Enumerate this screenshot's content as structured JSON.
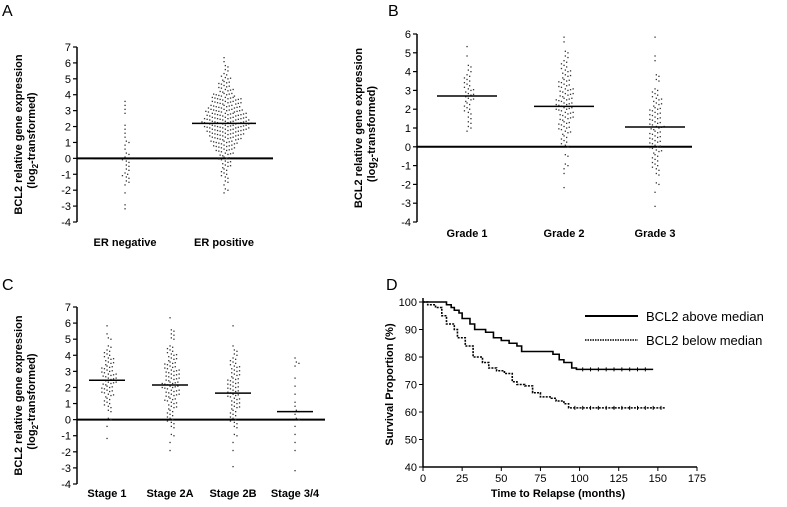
{
  "chart_data": [
    {
      "panel": "A",
      "type": "scatter",
      "ylabel": [
        "BCL2 relative gene expression",
        "(log",
        "2",
        "-transformed)"
      ],
      "ylim": [
        -4,
        7
      ],
      "yticks": [
        7,
        6,
        5,
        4,
        3,
        2,
        1,
        0,
        -1,
        -2,
        -3,
        -4
      ],
      "categories": [
        "ER negative",
        "ER positive"
      ],
      "medians": [
        0.0,
        2.2
      ],
      "bins": [
        [
          [
            3.5,
            1
          ],
          [
            3.25,
            1
          ],
          [
            3,
            1
          ],
          [
            2.75,
            1
          ],
          [
            2,
            1
          ],
          [
            1.75,
            1
          ],
          [
            1.5,
            1
          ],
          [
            1.25,
            1
          ],
          [
            1,
            2
          ],
          [
            0.75,
            1
          ],
          [
            0.5,
            1
          ],
          [
            0.25,
            2
          ],
          [
            0,
            3
          ],
          [
            -0.25,
            2
          ],
          [
            -0.5,
            2
          ],
          [
            -0.75,
            2
          ],
          [
            -1,
            3
          ],
          [
            -1.25,
            2
          ],
          [
            -1.5,
            2
          ],
          [
            -1.75,
            1
          ],
          [
            -2.25,
            1
          ],
          [
            -3,
            1
          ],
          [
            -3.25,
            1
          ]
        ],
        [
          [
            6.25,
            1
          ],
          [
            6,
            1
          ],
          [
            5.75,
            2
          ],
          [
            5.5,
            2
          ],
          [
            5.25,
            3
          ],
          [
            5,
            4
          ],
          [
            4.75,
            5
          ],
          [
            4.5,
            5
          ],
          [
            4.25,
            6
          ],
          [
            4,
            9
          ],
          [
            3.75,
            12
          ],
          [
            3.5,
            12
          ],
          [
            3.25,
            13
          ],
          [
            3,
            15
          ],
          [
            2.75,
            16
          ],
          [
            2.5,
            18
          ],
          [
            2.25,
            20
          ],
          [
            2,
            18
          ],
          [
            1.75,
            16
          ],
          [
            1.5,
            14
          ],
          [
            1.25,
            12
          ],
          [
            1,
            11
          ],
          [
            0.75,
            9
          ],
          [
            0.5,
            7
          ],
          [
            0.25,
            6
          ],
          [
            0,
            5
          ],
          [
            -0.25,
            4
          ],
          [
            -0.5,
            4
          ],
          [
            -0.75,
            3
          ],
          [
            -1,
            3
          ],
          [
            -1.25,
            2
          ],
          [
            -1.5,
            2
          ],
          [
            -1.75,
            1
          ],
          [
            -2,
            2
          ],
          [
            -2.25,
            1
          ]
        ]
      ]
    },
    {
      "panel": "B",
      "type": "scatter",
      "ylabel": [
        "BCL2 relative gene expression",
        "(log",
        "2",
        "-transformed)"
      ],
      "ylim": [
        -4,
        6
      ],
      "yticks": [
        6,
        5,
        4,
        3,
        2,
        1,
        0,
        -1,
        -2,
        -3,
        -4
      ],
      "categories": [
        "Grade 1",
        "Grade 2",
        "Grade 3"
      ],
      "medians": [
        2.7,
        2.15,
        1.05
      ],
      "bins": [
        [
          [
            5.25,
            1
          ],
          [
            4.75,
            1
          ],
          [
            4.25,
            2
          ],
          [
            4,
            2
          ],
          [
            3.75,
            3
          ],
          [
            3.5,
            3
          ],
          [
            3.25,
            3
          ],
          [
            3,
            4
          ],
          [
            2.75,
            4
          ],
          [
            2.5,
            4
          ],
          [
            2.25,
            3
          ],
          [
            2,
            3
          ],
          [
            1.75,
            2
          ],
          [
            1.5,
            2
          ],
          [
            1.25,
            2
          ],
          [
            1,
            2
          ],
          [
            0.75,
            1
          ]
        ],
        [
          [
            5.75,
            1
          ],
          [
            5.5,
            1
          ],
          [
            5,
            2
          ],
          [
            4.75,
            2
          ],
          [
            4.5,
            3
          ],
          [
            4.25,
            3
          ],
          [
            4,
            4
          ],
          [
            3.75,
            4
          ],
          [
            3.5,
            5
          ],
          [
            3.25,
            5
          ],
          [
            3,
            6
          ],
          [
            2.75,
            6
          ],
          [
            2.5,
            7
          ],
          [
            2.25,
            7
          ],
          [
            2,
            7
          ],
          [
            1.75,
            6
          ],
          [
            1.5,
            6
          ],
          [
            1.25,
            5
          ],
          [
            1,
            5
          ],
          [
            0.75,
            4
          ],
          [
            0.5,
            3
          ],
          [
            0.25,
            3
          ],
          [
            0,
            2
          ],
          [
            -0.5,
            2
          ],
          [
            -1,
            2
          ],
          [
            -1.25,
            1
          ],
          [
            -1.5,
            1
          ],
          [
            -2.25,
            1
          ]
        ],
        [
          [
            5.75,
            1
          ],
          [
            4.75,
            1
          ],
          [
            4.5,
            1
          ],
          [
            3.75,
            2
          ],
          [
            3.5,
            2
          ],
          [
            3,
            3
          ],
          [
            2.75,
            3
          ],
          [
            2.5,
            4
          ],
          [
            2.25,
            4
          ],
          [
            2,
            5
          ],
          [
            1.75,
            5
          ],
          [
            1.5,
            5
          ],
          [
            1.25,
            5
          ],
          [
            1,
            6
          ],
          [
            0.75,
            5
          ],
          [
            0.5,
            5
          ],
          [
            0.25,
            5
          ],
          [
            0,
            5
          ],
          [
            -0.25,
            4
          ],
          [
            -0.5,
            3
          ],
          [
            -0.75,
            3
          ],
          [
            -1,
            3
          ],
          [
            -1.25,
            2
          ],
          [
            -1.5,
            2
          ],
          [
            -2,
            2
          ],
          [
            -2.5,
            1
          ],
          [
            -3.25,
            1
          ]
        ]
      ]
    },
    {
      "panel": "C",
      "type": "scatter",
      "ylabel": [
        "BCL2 relative gene expression",
        "(log",
        "2",
        "-transformed)"
      ],
      "ylim": [
        -4,
        7
      ],
      "yticks": [
        7,
        6,
        5,
        4,
        3,
        2,
        1,
        0,
        -1,
        -2,
        -3,
        -4
      ],
      "categories": [
        "Stage 1",
        "Stage 2A",
        "Stage 2B",
        "Stage 3/4"
      ],
      "medians": [
        2.45,
        2.15,
        1.65,
        0.5
      ],
      "bins": [
        [
          [
            5.75,
            1
          ],
          [
            5.25,
            1
          ],
          [
            5,
            2
          ],
          [
            4.5,
            2
          ],
          [
            4.25,
            3
          ],
          [
            4,
            3
          ],
          [
            3.75,
            4
          ],
          [
            3.5,
            4
          ],
          [
            3.25,
            5
          ],
          [
            3,
            5
          ],
          [
            2.75,
            6
          ],
          [
            2.5,
            6
          ],
          [
            2.25,
            6
          ],
          [
            2,
            5
          ],
          [
            1.75,
            5
          ],
          [
            1.5,
            4
          ],
          [
            1.25,
            3
          ],
          [
            1,
            3
          ],
          [
            0.75,
            2
          ],
          [
            0.5,
            2
          ],
          [
            0,
            2
          ],
          [
            -0.5,
            1
          ],
          [
            -1.25,
            1
          ]
        ],
        [
          [
            6.25,
            1
          ],
          [
            5.5,
            2
          ],
          [
            5.25,
            2
          ],
          [
            5,
            2
          ],
          [
            4.5,
            3
          ],
          [
            4.25,
            3
          ],
          [
            4,
            4
          ],
          [
            3.75,
            4
          ],
          [
            3.5,
            5
          ],
          [
            3.25,
            5
          ],
          [
            3,
            6
          ],
          [
            2.75,
            6
          ],
          [
            2.5,
            6
          ],
          [
            2.25,
            7
          ],
          [
            2,
            7
          ],
          [
            1.75,
            6
          ],
          [
            1.5,
            6
          ],
          [
            1.25,
            5
          ],
          [
            1,
            4
          ],
          [
            0.75,
            4
          ],
          [
            0.5,
            3
          ],
          [
            0.25,
            3
          ],
          [
            0,
            3
          ],
          [
            -0.25,
            2
          ],
          [
            -0.5,
            2
          ],
          [
            -1,
            2
          ],
          [
            -1.5,
            1
          ],
          [
            -2,
            1
          ]
        ],
        [
          [
            5.75,
            1
          ],
          [
            4.5,
            1
          ],
          [
            4.25,
            2
          ],
          [
            4,
            2
          ],
          [
            3.75,
            3
          ],
          [
            3.5,
            3
          ],
          [
            3.25,
            4
          ],
          [
            3,
            4
          ],
          [
            2.75,
            4
          ],
          [
            2.5,
            5
          ],
          [
            2.25,
            5
          ],
          [
            2,
            5
          ],
          [
            1.75,
            5
          ],
          [
            1.5,
            5
          ],
          [
            1.25,
            4
          ],
          [
            1,
            4
          ],
          [
            0.75,
            4
          ],
          [
            0.5,
            3
          ],
          [
            0.25,
            3
          ],
          [
            0,
            3
          ],
          [
            -0.25,
            2
          ],
          [
            -0.5,
            2
          ],
          [
            -1,
            2
          ],
          [
            -1.5,
            1
          ],
          [
            -2,
            1
          ],
          [
            -3,
            1
          ]
        ],
        [
          [
            3.75,
            1
          ],
          [
            3.5,
            2
          ],
          [
            3.25,
            1
          ],
          [
            2.5,
            1
          ],
          [
            2,
            1
          ],
          [
            1.5,
            1
          ],
          [
            1,
            1
          ],
          [
            0.75,
            1
          ],
          [
            0.5,
            2
          ],
          [
            0.25,
            1
          ],
          [
            0,
            2
          ],
          [
            -0.5,
            1
          ],
          [
            -1,
            1
          ],
          [
            -1.5,
            1
          ],
          [
            -2,
            1
          ],
          [
            -3.25,
            1
          ]
        ]
      ]
    },
    {
      "panel": "D",
      "type": "line",
      "xlabel": "Time to Relapse (months)",
      "ylabel": "Survival Proportion (%)",
      "xlim": [
        0,
        175
      ],
      "ylim": [
        40,
        100
      ],
      "xticks": [
        0,
        25,
        50,
        75,
        100,
        125,
        150,
        175
      ],
      "yticks": [
        100,
        90,
        80,
        70,
        60,
        50,
        40
      ],
      "legend_position": "top-right",
      "series": [
        {
          "name": "BCL2 above median",
          "style": "solid",
          "x": [
            0,
            10,
            15,
            18,
            20,
            23,
            25,
            30,
            33,
            40,
            45,
            50,
            55,
            60,
            63,
            75,
            83,
            87,
            90,
            95,
            98,
            147
          ],
          "y": [
            100,
            100,
            99,
            98,
            97,
            96,
            94,
            92,
            90,
            89,
            87,
            86,
            85,
            84,
            82,
            82,
            81,
            79,
            78,
            76,
            75.5,
            75.5
          ]
        },
        {
          "name": "BCL2 below median",
          "style": "dotted",
          "x": [
            0,
            3,
            8,
            12,
            15,
            20,
            22,
            27,
            32,
            38,
            42,
            47,
            52,
            57,
            60,
            65,
            70,
            75,
            82,
            85,
            90,
            93,
            155
          ],
          "y": [
            100,
            99,
            98,
            95,
            92,
            90,
            87,
            84,
            80,
            78,
            76,
            75,
            74,
            71,
            70,
            69.5,
            67,
            65.5,
            65,
            64,
            63,
            61.5,
            61.5
          ]
        }
      ]
    }
  ]
}
